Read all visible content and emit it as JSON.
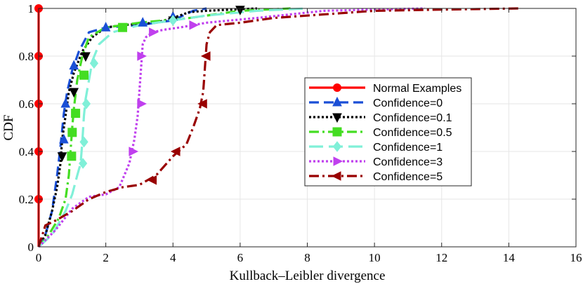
{
  "chart_data": {
    "type": "line",
    "title": "",
    "xlabel": "Kullback–Leibler divergence",
    "ylabel": "CDF",
    "xlim": [
      0,
      16
    ],
    "ylim": [
      0,
      1
    ],
    "x_ticks": [
      0,
      2,
      4,
      6,
      8,
      10,
      12,
      14,
      16
    ],
    "y_ticks": [
      0,
      0.2,
      0.4,
      0.6,
      0.8,
      1
    ],
    "x_tick_labels": [
      "0",
      "2",
      "4",
      "6",
      "8",
      "10",
      "12",
      "14",
      "16"
    ],
    "y_tick_labels": [
      "0",
      "0.2",
      "0.4",
      "0.6",
      "0.8",
      "1"
    ],
    "grid": true,
    "legend_position": "center-right",
    "series": [
      {
        "name": "Normal Examples",
        "color": "#ff0000",
        "dash": "solid",
        "marker": "circle",
        "x": [
          0,
          0,
          0,
          0,
          0,
          0
        ],
        "y": [
          0,
          0.2,
          0.4,
          0.6,
          0.8,
          1.0
        ],
        "markers": [
          [
            0,
            0.2
          ],
          [
            0,
            0.4
          ],
          [
            0,
            0.6
          ],
          [
            0,
            0.8
          ],
          [
            0,
            1.0
          ]
        ]
      },
      {
        "name": "Confidence=0",
        "color": "#1a4fd6",
        "dash": "dash",
        "marker": "triangle-up",
        "x": [
          0,
          0.2,
          0.4,
          0.55,
          0.65,
          0.75,
          0.85,
          1.0,
          1.2,
          1.5,
          2.0,
          3.0,
          4.0,
          4.3,
          4.6,
          5.0
        ],
        "y": [
          0,
          0.05,
          0.15,
          0.3,
          0.42,
          0.56,
          0.65,
          0.74,
          0.82,
          0.9,
          0.92,
          0.93,
          0.95,
          0.97,
          0.99,
          1.0
        ],
        "markers": [
          [
            0.75,
            0.45
          ],
          [
            0.8,
            0.6
          ],
          [
            1.05,
            0.76
          ],
          [
            2.0,
            0.92
          ],
          [
            3.1,
            0.94
          ],
          [
            4.0,
            0.965
          ]
        ]
      },
      {
        "name": "Confidence=0.1",
        "color": "#000000",
        "dash": "dot",
        "marker": "triangle-down",
        "x": [
          0,
          0.2,
          0.4,
          0.55,
          0.65,
          0.7,
          0.8,
          0.9,
          1.05,
          1.3,
          1.6,
          2.0,
          2.5,
          3.5,
          4.0,
          4.5,
          5.0,
          6.5
        ],
        "y": [
          0,
          0.05,
          0.15,
          0.25,
          0.35,
          0.45,
          0.55,
          0.65,
          0.73,
          0.82,
          0.88,
          0.92,
          0.93,
          0.94,
          0.96,
          0.985,
          0.99,
          1.0
        ],
        "markers": [
          [
            0.7,
            0.38
          ],
          [
            1.05,
            0.65
          ],
          [
            1.4,
            0.8
          ],
          [
            4.0,
            0.95
          ],
          [
            6.0,
            0.995
          ]
        ]
      },
      {
        "name": "Confidence=0.5",
        "color": "#44dd22",
        "dash": "dashdot",
        "marker": "square",
        "x": [
          0,
          0.3,
          0.6,
          0.8,
          0.9,
          0.95,
          1.0,
          1.05,
          1.15,
          1.3,
          1.5,
          2.0,
          3.0,
          4.5,
          6.0,
          7.5
        ],
        "y": [
          0,
          0.05,
          0.12,
          0.2,
          0.3,
          0.4,
          0.5,
          0.58,
          0.7,
          0.8,
          0.88,
          0.92,
          0.94,
          0.96,
          0.99,
          1.0
        ],
        "markers": [
          [
            0.98,
            0.38
          ],
          [
            1.0,
            0.48
          ],
          [
            1.1,
            0.56
          ],
          [
            1.35,
            0.72
          ],
          [
            2.5,
            0.92
          ]
        ]
      },
      {
        "name": "Confidence=1",
        "color": "#80f0d8",
        "dash": "longdash",
        "marker": "diamond",
        "x": [
          0,
          0.4,
          0.8,
          1.0,
          1.15,
          1.25,
          1.3,
          1.35,
          1.4,
          1.5,
          1.6,
          1.8,
          2.2,
          3.0,
          4.0,
          5.0,
          6.5,
          8.0
        ],
        "y": [
          0,
          0.05,
          0.15,
          0.22,
          0.3,
          0.35,
          0.44,
          0.55,
          0.62,
          0.7,
          0.78,
          0.85,
          0.9,
          0.93,
          0.95,
          0.97,
          0.99,
          1.0
        ],
        "markers": [
          [
            1.32,
            0.35
          ],
          [
            1.35,
            0.44
          ],
          [
            1.42,
            0.6
          ],
          [
            1.65,
            0.77
          ],
          [
            4.0,
            0.95
          ]
        ]
      },
      {
        "name": "Confidence=3",
        "color": "#c040ee",
        "dash": "dot",
        "marker": "triangle-right",
        "x": [
          0,
          0.5,
          1.0,
          1.5,
          2.0,
          2.4,
          2.7,
          2.85,
          2.95,
          3.0,
          3.05,
          3.1,
          3.2,
          3.4,
          3.7,
          4.2,
          5.0,
          6.5,
          8.5,
          10.0,
          11.5
        ],
        "y": [
          0,
          0.07,
          0.16,
          0.21,
          0.22,
          0.25,
          0.35,
          0.45,
          0.55,
          0.65,
          0.75,
          0.85,
          0.88,
          0.9,
          0.91,
          0.92,
          0.94,
          0.96,
          0.99,
          0.995,
          1.0
        ],
        "markers": [
          [
            2.8,
            0.4
          ],
          [
            3.05,
            0.6
          ],
          [
            3.05,
            0.8
          ],
          [
            3.4,
            0.9
          ],
          [
            4.6,
            0.93
          ]
        ]
      },
      {
        "name": "Confidence=5",
        "color": "#990000",
        "dash": "dashdot",
        "marker": "triangle-left",
        "x": [
          0,
          0.2,
          0.5,
          1.0,
          1.5,
          2.0,
          2.5,
          3.0,
          3.5,
          4.0,
          4.4,
          4.6,
          4.8,
          4.9,
          4.95,
          5.0,
          5.1,
          5.3,
          6.0,
          7.0,
          8.0,
          9.0,
          10.0,
          12.0,
          14.3
        ],
        "y": [
          0,
          0.09,
          0.11,
          0.15,
          0.2,
          0.23,
          0.25,
          0.26,
          0.3,
          0.38,
          0.43,
          0.5,
          0.58,
          0.65,
          0.75,
          0.85,
          0.9,
          0.93,
          0.94,
          0.96,
          0.97,
          0.98,
          0.99,
          0.995,
          1.0
        ],
        "markers": [
          [
            3.4,
            0.28
          ],
          [
            4.1,
            0.4
          ],
          [
            4.9,
            0.6
          ],
          [
            5.0,
            0.8
          ]
        ]
      }
    ]
  }
}
